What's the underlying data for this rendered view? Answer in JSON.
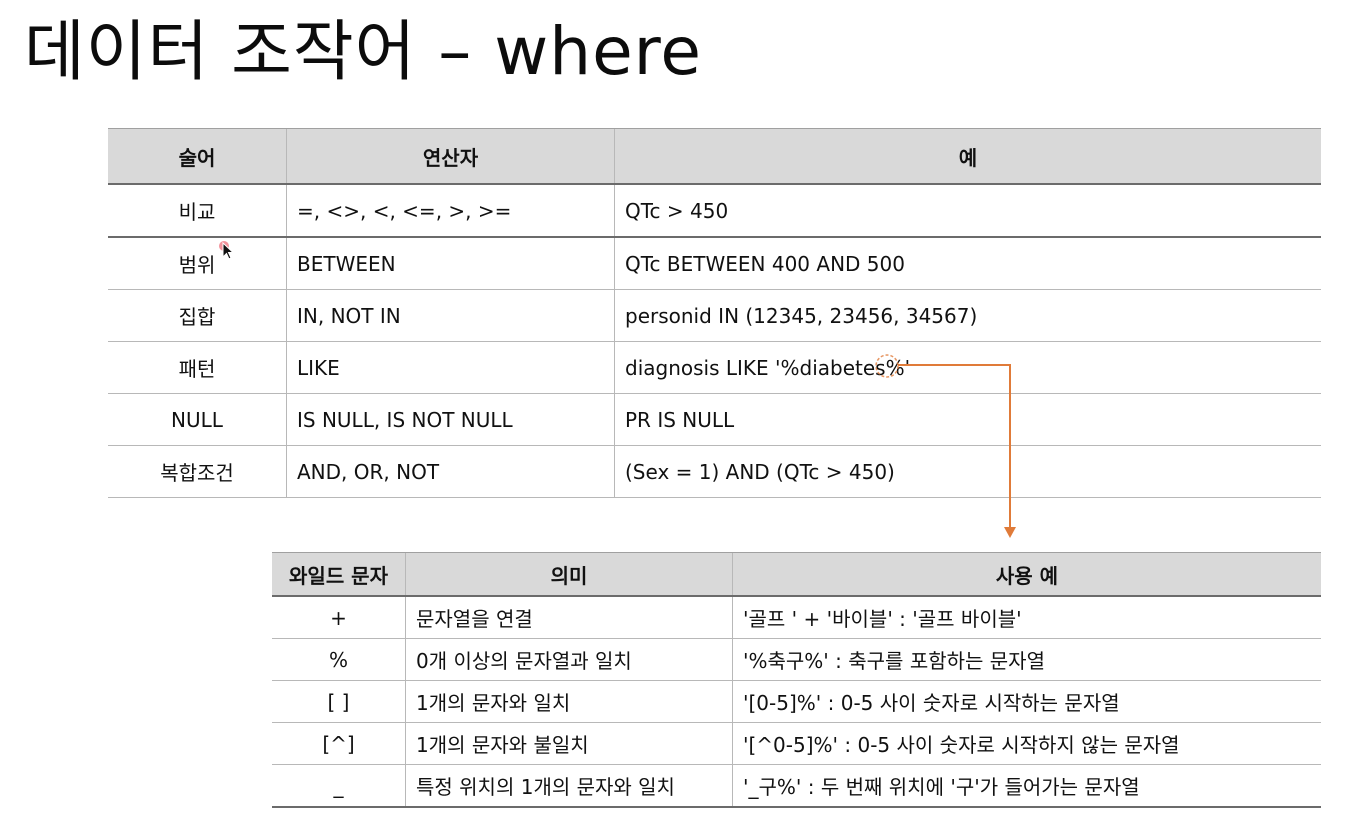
{
  "title": "데이터 조작어 – where",
  "operators_table": {
    "headers": [
      "술어",
      "연산자",
      "예"
    ],
    "rows": [
      [
        "비교",
        "=, <>, <, <=, >, >=",
        "QTc > 450"
      ],
      [
        "범위",
        "BETWEEN",
        "QTc BETWEEN 400 AND 500"
      ],
      [
        "집합",
        "IN, NOT IN",
        "personid IN (12345, 23456, 34567)"
      ],
      [
        "패턴",
        "LIKE",
        "diagnosis LIKE '%diabetes%'"
      ],
      [
        "NULL",
        "IS NULL, IS NOT NULL",
        "PR IS NULL"
      ],
      [
        "복합조건",
        "AND, OR, NOT",
        "(Sex = 1) AND (QTc > 450)"
      ]
    ]
  },
  "wildcard_table": {
    "headers": [
      "와일드 문자",
      "의미",
      "사용 예"
    ],
    "rows": [
      [
        "+",
        "문자열을 연결",
        "'골프 ' + '바이블' : '골프 바이블'"
      ],
      [
        "%",
        "0개 이상의 문자열과 일치",
        "'%축구%' : 축구를 포함하는 문자열"
      ],
      [
        "[ ]",
        "1개의 문자와 일치",
        "'[0-5]%' : 0-5 사이 숫자로 시작하는 문자열"
      ],
      [
        "[^]",
        "1개의 문자와 불일치",
        "'[^0-5]%' : 0-5 사이 숫자로 시작하지 않는 문자열"
      ],
      [
        "_",
        "특정 위치의 1개의 문자와 일치",
        "'_구%' : 두 번째 위치에 '구'가 들어가는 문자열"
      ]
    ]
  },
  "colors": {
    "header_bg": "#d9d9d9",
    "arrow": "#e07b39",
    "cursor_highlight": "#e83a4a"
  }
}
